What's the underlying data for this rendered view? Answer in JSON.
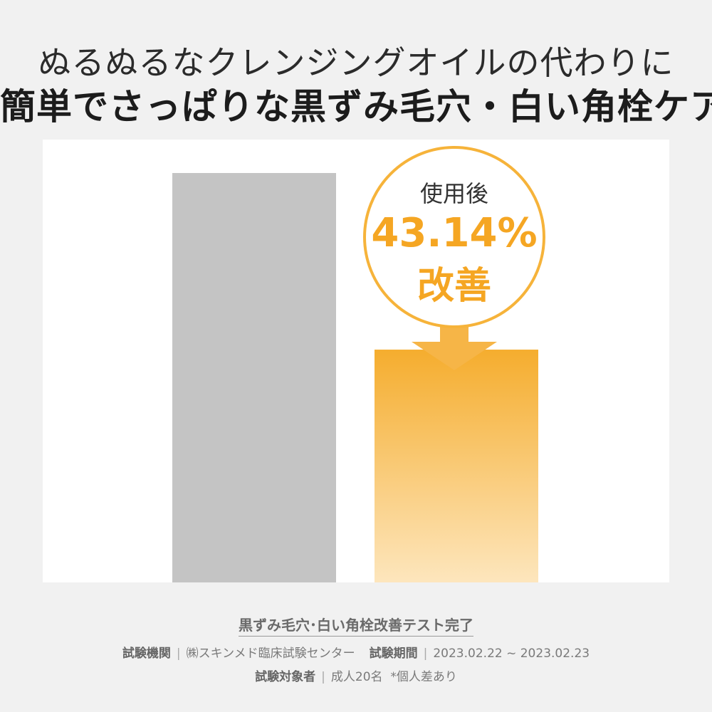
{
  "headline": {
    "line1": "ぬるぬるなクレンジングオイルの代わりに",
    "line2": "簡単でさっぱりな黒ずみ毛穴・白い角栓ケア"
  },
  "chart_data": {
    "type": "bar",
    "categories": [
      "",
      ""
    ],
    "values": [
      100,
      56.86
    ],
    "ylim": [
      0,
      100
    ],
    "grid": false,
    "colors": [
      "#c4c4c4",
      "#f5ad2e"
    ],
    "annotation": {
      "caption": "使用後",
      "value": "43.14%",
      "label": "改善"
    }
  },
  "footer": {
    "title": "黒ずみ毛穴･白い角栓改善テスト完了",
    "org_label": "試験機関",
    "org_value": "㈱スキンメド臨床試験センター",
    "period_label": "試験期間",
    "period_value": "2023.02.22 ~ 2023.02.23",
    "subjects_label": "試験対象者",
    "subjects_value": "成人20名",
    "note": "*個人差あり",
    "separator": "|"
  }
}
